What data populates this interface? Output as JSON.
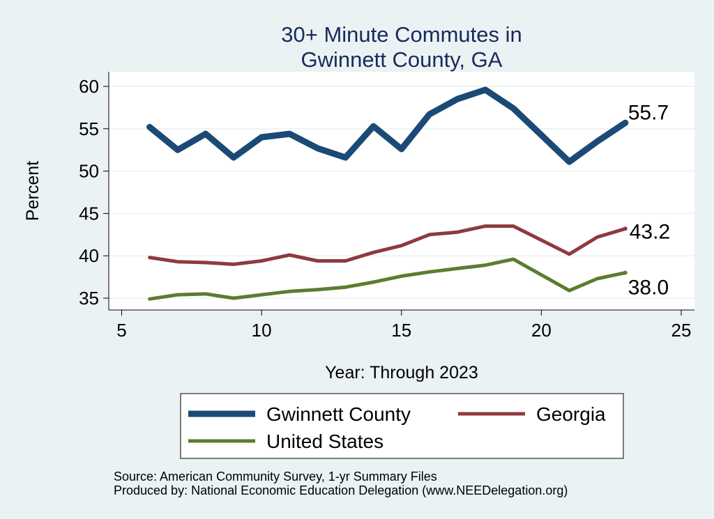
{
  "chart_data": {
    "type": "line",
    "title": [
      "30+ Minute Commutes in",
      "Gwinnett County, GA"
    ],
    "xlabel": "Year: Through 2023",
    "ylabel": "Percent",
    "xlim": [
      5,
      25
    ],
    "ylim": [
      34.5,
      61
    ],
    "xticks": [
      5,
      10,
      15,
      20,
      25
    ],
    "yticks": [
      35,
      40,
      45,
      50,
      55,
      60
    ],
    "grid": true,
    "x": [
      6,
      7,
      8,
      9,
      10,
      11,
      12,
      13,
      14,
      15,
      16,
      17,
      18,
      19,
      21,
      22,
      23
    ],
    "series": [
      {
        "name": "Gwinnett County",
        "color": "#1a4a75",
        "values": [
          55.2,
          52.5,
          54.4,
          51.6,
          54.0,
          54.4,
          52.7,
          51.6,
          55.3,
          52.6,
          56.7,
          58.5,
          59.6,
          57.4,
          51.1,
          53.5,
          55.7
        ],
        "end_label": "55.7"
      },
      {
        "name": "Georgia",
        "color": "#8f3a3e",
        "values": [
          39.8,
          39.3,
          39.2,
          39.0,
          39.4,
          40.1,
          39.4,
          39.4,
          40.4,
          41.2,
          42.5,
          42.8,
          43.5,
          43.5,
          40.2,
          42.2,
          43.2
        ],
        "end_label": "43.2"
      },
      {
        "name": "United States",
        "color": "#5b7d2f",
        "values": [
          34.9,
          35.4,
          35.5,
          35.0,
          35.4,
          35.8,
          36.0,
          36.3,
          36.9,
          37.6,
          38.1,
          38.5,
          38.9,
          39.6,
          35.9,
          37.3,
          38.0
        ],
        "end_label": "38.0"
      }
    ],
    "legend": {
      "placement": "bottom",
      "entries": [
        "Gwinnett County",
        "Georgia",
        "United States"
      ]
    }
  },
  "notes": {
    "source": "Source: American Community Survey, 1-yr Summary Files",
    "produced": "Produced by: National Economic Education Delegation (www.NEEDelegation.org)"
  }
}
